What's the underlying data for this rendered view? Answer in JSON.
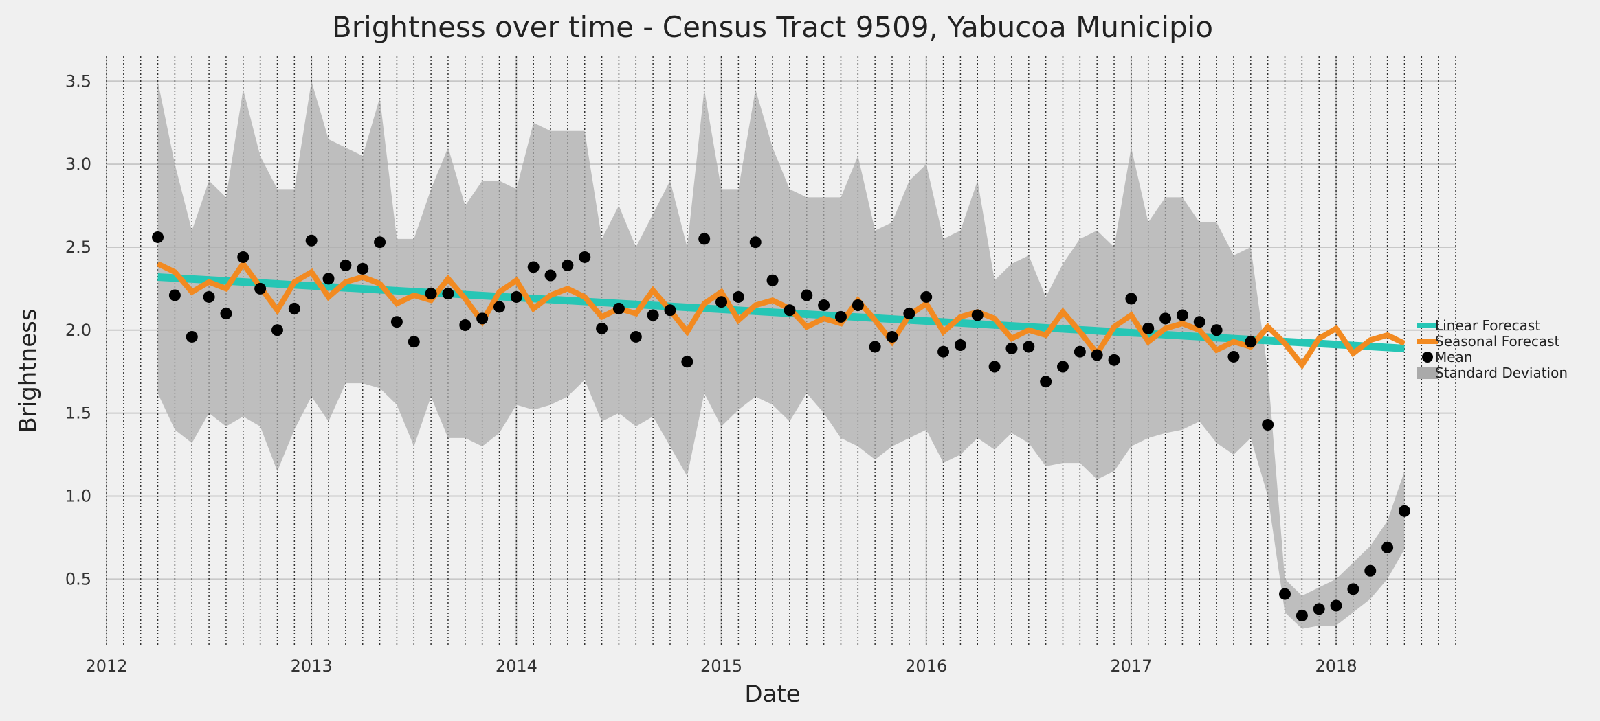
{
  "chart_data": {
    "type": "line",
    "title": "Brightness over time - Census Tract 9509, Yabucoa Municipio",
    "xlabel": "Date",
    "ylabel": "Brightness",
    "x_range": [
      "2012-01-01",
      "2018-08-01"
    ],
    "ylim": [
      0.1,
      3.65
    ],
    "yticks": [
      0.5,
      1.0,
      1.5,
      2.0,
      2.5,
      3.0,
      3.5
    ],
    "xticks": [
      "2012",
      "2013",
      "2014",
      "2015",
      "2016",
      "2017",
      "2018"
    ],
    "grid": true,
    "legend_position": "right",
    "dates": [
      "2012-04",
      "2012-05",
      "2012-06",
      "2012-07",
      "2012-08",
      "2012-09",
      "2012-10",
      "2012-11",
      "2012-12",
      "2013-01",
      "2013-02",
      "2013-03",
      "2013-04",
      "2013-05",
      "2013-06",
      "2013-07",
      "2013-08",
      "2013-09",
      "2013-10",
      "2013-11",
      "2013-12",
      "2014-01",
      "2014-02",
      "2014-03",
      "2014-04",
      "2014-05",
      "2014-06",
      "2014-07",
      "2014-08",
      "2014-09",
      "2014-10",
      "2014-11",
      "2014-12",
      "2015-01",
      "2015-02",
      "2015-03",
      "2015-04",
      "2015-05",
      "2015-06",
      "2015-07",
      "2015-08",
      "2015-09",
      "2015-10",
      "2015-11",
      "2015-12",
      "2016-01",
      "2016-02",
      "2016-03",
      "2016-04",
      "2016-05",
      "2016-06",
      "2016-07",
      "2016-08",
      "2016-09",
      "2016-10",
      "2016-11",
      "2016-12",
      "2017-01",
      "2017-02",
      "2017-03",
      "2017-04",
      "2017-05",
      "2017-06",
      "2017-07",
      "2017-08",
      "2017-09",
      "2017-10",
      "2017-11",
      "2017-12",
      "2018-01",
      "2018-02",
      "2018-03",
      "2018-04",
      "2018-05"
    ],
    "series": [
      {
        "name": "Linear Forecast",
        "kind": "line",
        "color": "#26c6b5",
        "x": [
          "2012-04",
          "2018-05"
        ],
        "values": [
          2.32,
          1.89
        ]
      },
      {
        "name": "Seasonal Forecast",
        "kind": "line",
        "color": "#f28a21",
        "values": [
          2.4,
          2.35,
          2.23,
          2.29,
          2.25,
          2.4,
          2.26,
          2.12,
          2.29,
          2.35,
          2.2,
          2.29,
          2.32,
          2.28,
          2.16,
          2.21,
          2.18,
          2.31,
          2.19,
          2.05,
          2.23,
          2.3,
          2.13,
          2.21,
          2.25,
          2.2,
          2.08,
          2.13,
          2.1,
          2.24,
          2.12,
          1.99,
          2.16,
          2.23,
          2.06,
          2.15,
          2.18,
          2.13,
          2.02,
          2.07,
          2.04,
          2.18,
          2.06,
          1.93,
          2.09,
          2.16,
          1.99,
          2.08,
          2.11,
          2.07,
          1.95,
          2.0,
          1.97,
          2.11,
          1.99,
          1.86,
          2.02,
          2.09,
          1.93,
          2.01,
          2.04,
          2.0,
          1.88,
          1.93,
          1.9,
          2.02,
          1.92,
          1.79,
          1.95,
          2.01,
          1.86,
          1.94,
          1.97,
          1.92
        ]
      },
      {
        "name": "Mean",
        "kind": "scatter",
        "color": "#000000",
        "values": [
          2.56,
          2.21,
          1.96,
          2.2,
          2.1,
          2.44,
          2.25,
          2.0,
          2.13,
          2.54,
          2.31,
          2.39,
          2.37,
          2.53,
          2.05,
          1.93,
          2.22,
          2.22,
          2.03,
          2.07,
          2.14,
          2.2,
          2.38,
          2.33,
          2.39,
          2.44,
          2.01,
          2.13,
          1.96,
          2.09,
          2.12,
          1.81,
          2.55,
          2.17,
          2.2,
          2.53,
          2.3,
          2.12,
          2.21,
          2.15,
          2.08,
          2.15,
          1.9,
          1.96,
          2.1,
          2.2,
          1.87,
          1.91,
          2.09,
          1.78,
          1.89,
          1.9,
          1.69,
          1.78,
          1.87,
          1.85,
          1.82,
          2.19,
          2.01,
          2.07,
          2.09,
          2.05,
          2.0,
          1.84,
          1.93,
          1.43,
          0.41,
          0.28,
          0.32,
          0.34,
          0.44,
          0.55,
          0.69,
          0.91
        ]
      },
      {
        "name": "Standard Deviation",
        "kind": "area",
        "color": "#aaaaaa",
        "upper": [
          3.5,
          3.0,
          2.6,
          2.9,
          2.8,
          3.45,
          3.05,
          2.85,
          2.85,
          3.5,
          3.15,
          3.1,
          3.05,
          3.4,
          2.55,
          2.55,
          2.85,
          3.1,
          2.75,
          2.9,
          2.9,
          2.85,
          3.25,
          3.2,
          3.2,
          3.2,
          2.55,
          2.75,
          2.5,
          2.7,
          2.9,
          2.5,
          3.45,
          2.85,
          2.85,
          3.45,
          3.1,
          2.85,
          2.8,
          2.8,
          2.8,
          3.05,
          2.6,
          2.65,
          2.9,
          3.0,
          2.55,
          2.6,
          2.9,
          2.3,
          2.4,
          2.45,
          2.2,
          2.4,
          2.55,
          2.6,
          2.5,
          3.1,
          2.65,
          2.8,
          2.8,
          2.65,
          2.65,
          2.45,
          2.5,
          1.75,
          0.5,
          0.4,
          0.45,
          0.5,
          0.6,
          0.7,
          0.85,
          1.15
        ],
        "lower": [
          1.62,
          1.4,
          1.32,
          1.5,
          1.42,
          1.48,
          1.42,
          1.15,
          1.4,
          1.6,
          1.45,
          1.68,
          1.68,
          1.65,
          1.55,
          1.3,
          1.6,
          1.35,
          1.35,
          1.3,
          1.38,
          1.55,
          1.52,
          1.55,
          1.6,
          1.7,
          1.45,
          1.5,
          1.42,
          1.48,
          1.3,
          1.12,
          1.62,
          1.42,
          1.52,
          1.6,
          1.55,
          1.45,
          1.62,
          1.5,
          1.35,
          1.3,
          1.22,
          1.3,
          1.35,
          1.4,
          1.2,
          1.25,
          1.35,
          1.28,
          1.38,
          1.32,
          1.18,
          1.2,
          1.2,
          1.1,
          1.15,
          1.3,
          1.35,
          1.38,
          1.4,
          1.45,
          1.32,
          1.25,
          1.35,
          1.0,
          0.3,
          0.2,
          0.22,
          0.22,
          0.3,
          0.38,
          0.5,
          0.68
        ]
      }
    ]
  },
  "colors": {
    "background": "#f0f0f0",
    "grid": "#c8c8c8",
    "vline": "#333333"
  }
}
